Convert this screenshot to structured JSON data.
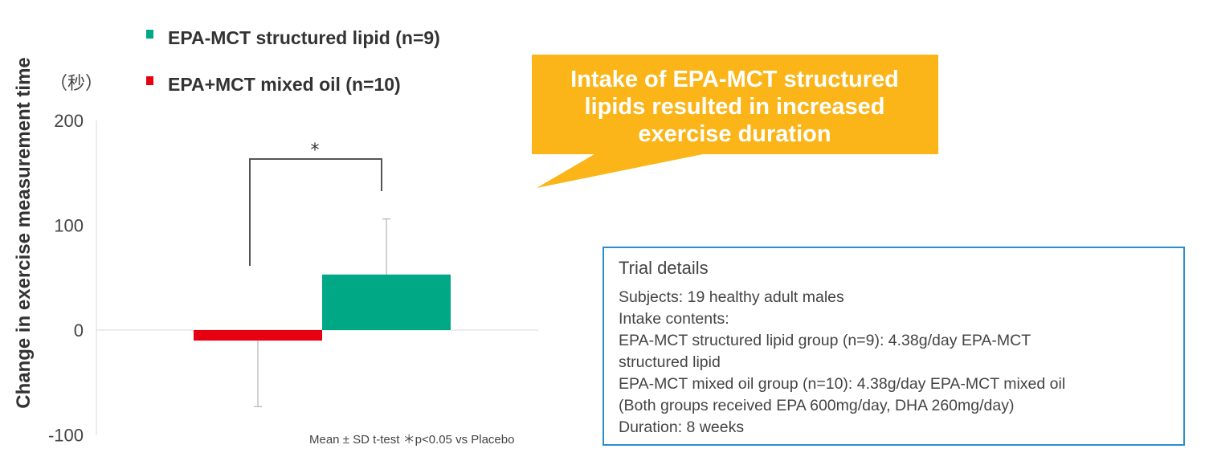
{
  "chart_data": {
    "type": "bar",
    "ylabel": "Change in exercise measurement time",
    "yunit": "（秒）",
    "ylim": [
      -100,
      200
    ],
    "yticks": [
      200,
      100,
      0,
      -100
    ],
    "grid": false,
    "legend_position": "top-left",
    "series": [
      {
        "name": "EPA-MCT structured lipid (n=9)",
        "value": 53,
        "error": 53,
        "color": "#00a886"
      },
      {
        "name": "EPA+MCT mixed oil (n=10)",
        "value": -10,
        "error": 63,
        "color": "#e60012"
      }
    ],
    "significance": "*",
    "footnote": "Mean ± SD  t-test ＊p<0.05 vs Placebo"
  },
  "callout": {
    "lines": [
      "Intake of EPA-MCT structured",
      "lipids resulted in increased",
      "exercise duration"
    ],
    "color": "#fbb519"
  },
  "trial": {
    "title": "Trial details",
    "lines": [
      "Subjects: 19 healthy adult males",
      "Intake contents:",
      "EPA-MCT structured lipid group (n=9): 4.38g/day EPA-MCT",
      "structured lipid",
      "EPA-MCT mixed oil group (n=10): 4.38g/day EPA-MCT mixed oil",
      "(Both groups received EPA 600mg/day, DHA 260mg/day)",
      "Duration: 8 weeks"
    ],
    "border_color": "#2a8fd0"
  }
}
